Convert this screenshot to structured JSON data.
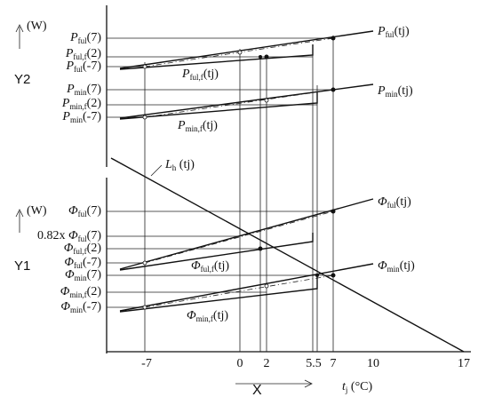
{
  "axes": {
    "y2": "Y2",
    "y1": "Y1",
    "x": "X",
    "unit_y2": "(W)",
    "unit_y1": "(W)",
    "x_title": {
      "main": "t",
      "sub": "j",
      "arg": " (°C)"
    },
    "x_ticks": [
      "-7",
      "0",
      "2",
      "5.5",
      "7",
      "10",
      "17"
    ]
  },
  "left_labels": [
    {
      "main": "P",
      "sub": "ful",
      "arg": "(7)"
    },
    {
      "main": "P",
      "sub": "ful,f",
      "arg": "(2)"
    },
    {
      "main": "P",
      "sub": "ful",
      "arg": "(-7)"
    },
    {
      "main": "P",
      "sub": "min",
      "arg": "(7)"
    },
    {
      "main": "P",
      "sub": "min,f",
      "arg": "(2)"
    },
    {
      "main": "P",
      "sub": "min",
      "arg": "(-7)"
    },
    {
      "main": "Φ",
      "sub": "ful",
      "arg": "(7)"
    },
    {
      "pre": "0.82x ",
      "main": "Φ",
      "sub": "ful",
      "arg": "(7)"
    },
    {
      "main": "Φ",
      "sub": "ful,f",
      "arg": "(2)"
    },
    {
      "main": "Φ",
      "sub": "ful",
      "arg": "(-7)"
    },
    {
      "main": "Φ",
      "sub": "min",
      "arg": "(7)"
    },
    {
      "main": "Φ",
      "sub": "min,f",
      "arg": "(2)"
    },
    {
      "main": "Φ",
      "sub": "min",
      "arg": "(-7)"
    }
  ],
  "curve_labels": [
    {
      "main": "P",
      "sub": "ful",
      "arg": "(tj)"
    },
    {
      "main": "P",
      "sub": "ful,f",
      "arg": "(tj)"
    },
    {
      "main": "P",
      "sub": "min",
      "arg": "(tj)"
    },
    {
      "main": "P",
      "sub": "min,f",
      "arg": "(tj)"
    },
    {
      "main": "Φ",
      "sub": "ful",
      "arg": "(tj)"
    },
    {
      "main": "Φ",
      "sub": "ful,f",
      "arg": "(tj)"
    },
    {
      "main": "Φ",
      "sub": "min",
      "arg": "(tj)"
    },
    {
      "main": "Φ",
      "sub": "min,f",
      "arg": "(tj)"
    },
    {
      "main": "L",
      "sub": "h",
      "arg": " (tj)"
    }
  ]
}
